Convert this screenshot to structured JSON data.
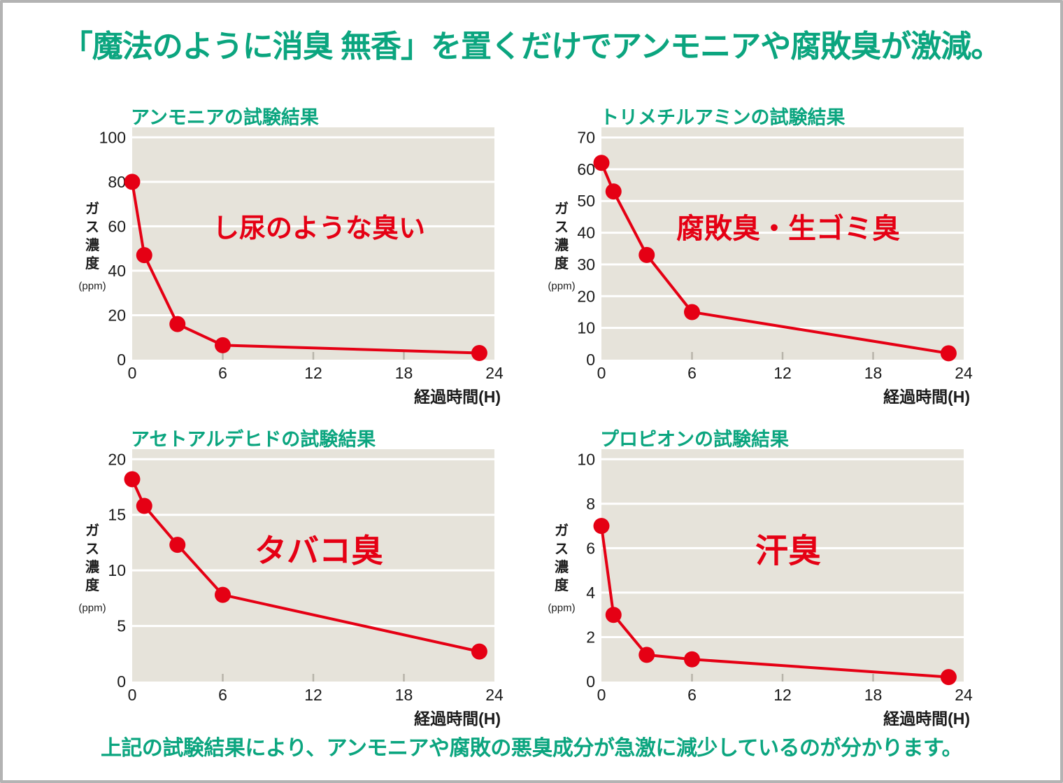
{
  "page": {
    "title": "「魔法のように消臭 無香」を置くだけでアンモニアや腐敗臭が激減。",
    "footer": "上記の試験結果により、アンモニアや腐敗の悪臭成分が急激に減少しているのが分かります。"
  },
  "colors": {
    "green": "#0ba57f",
    "red": "#e50014",
    "plot_bg": "#e6e3da",
    "grid": "#ffffff",
    "tick": "#b8b4aa",
    "text": "#1b1b1b",
    "border": "#b3b3b3"
  },
  "chart_data": [
    {
      "type": "line",
      "title": "アンモニアの試験結果",
      "annotation": "し尿のような臭い",
      "annotation_size": 38,
      "ylabel": "ガス濃度",
      "ylabel_unit": "(ppm)",
      "xlabel": "経過時間(H)",
      "x": [
        0,
        0.8,
        3,
        6,
        23
      ],
      "values": [
        80,
        47,
        16,
        6.5,
        3
      ],
      "yticks": [
        0,
        20,
        40,
        60,
        80,
        100
      ],
      "xticks": [
        0,
        6,
        12,
        18,
        24
      ],
      "ylim": [
        0,
        104.5
      ],
      "xlim": [
        0,
        24
      ],
      "grid": true,
      "legend": "none"
    },
    {
      "type": "line",
      "title": "トリメチルアミンの試験結果",
      "annotation": "腐敗臭・生ゴミ臭",
      "annotation_size": 40,
      "ylabel": "ガス濃度",
      "ylabel_unit": "(ppm)",
      "xlabel": "経過時間(H)",
      "x": [
        0,
        0.8,
        3,
        6,
        23
      ],
      "values": [
        62,
        53,
        33,
        15,
        2
      ],
      "yticks": [
        0,
        10,
        20,
        30,
        40,
        50,
        60,
        70
      ],
      "xticks": [
        0,
        6,
        12,
        18,
        24
      ],
      "ylim": [
        0,
        73.2
      ],
      "xlim": [
        0,
        24
      ],
      "grid": true,
      "legend": "none"
    },
    {
      "type": "line",
      "title": "アセトアルデヒドの試験結果",
      "annotation": "タバコ臭",
      "annotation_size": 46,
      "ylabel": "ガス濃度",
      "ylabel_unit": "(ppm)",
      "xlabel": "経過時間(H)",
      "x": [
        0,
        0.8,
        3,
        6,
        23
      ],
      "values": [
        18.2,
        15.8,
        12.3,
        7.8,
        2.7
      ],
      "yticks": [
        0,
        5,
        10,
        15,
        20
      ],
      "xticks": [
        0,
        6,
        12,
        18,
        24
      ],
      "ylim": [
        0,
        20.9
      ],
      "xlim": [
        0,
        24
      ],
      "grid": true,
      "legend": "none"
    },
    {
      "type": "line",
      "title": "プロピオンの試験結果",
      "annotation": "汗臭",
      "annotation_size": 47,
      "ylabel": "ガス濃度",
      "ylabel_unit": "(ppm)",
      "xlabel": "経過時間(H)",
      "x": [
        0,
        0.8,
        3,
        6,
        23
      ],
      "values": [
        7,
        3,
        1.2,
        1,
        0.2
      ],
      "yticks": [
        0,
        2,
        4,
        6,
        8,
        10
      ],
      "xticks": [
        0,
        6,
        12,
        18,
        24
      ],
      "ylim": [
        0,
        10.45
      ],
      "xlim": [
        0,
        24
      ],
      "grid": true,
      "legend": "none"
    }
  ]
}
